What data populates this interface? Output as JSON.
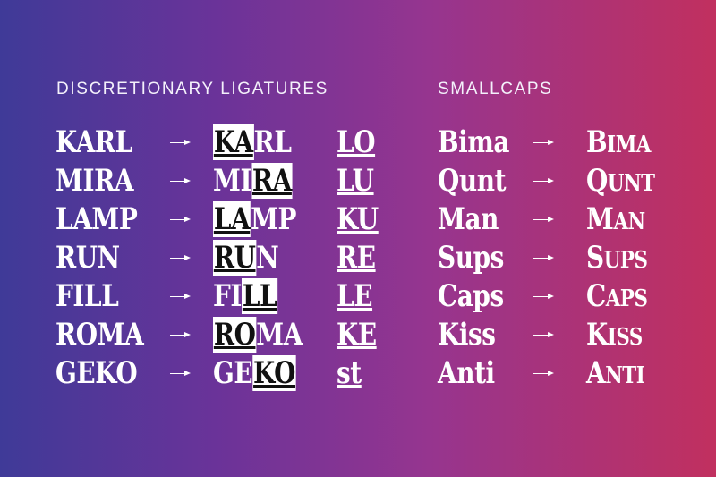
{
  "headings": {
    "ligatures": "DISCRETIONARY LIGATURES",
    "smallcaps": "SMALLCAPS"
  },
  "ligature_rows": [
    {
      "word": "KARL",
      "lig_pre": "",
      "lig_hl": "KA",
      "lig_post": "RL",
      "sample": "LO"
    },
    {
      "word": "MIRA",
      "lig_pre": "MI",
      "lig_hl": "RA",
      "lig_post": "",
      "sample": "LU"
    },
    {
      "word": "LAMP",
      "lig_pre": "",
      "lig_hl": "LA",
      "lig_post": "MP",
      "sample": "KU"
    },
    {
      "word": "RUN",
      "lig_pre": "",
      "lig_hl": "RU",
      "lig_post": "N",
      "sample": "RE"
    },
    {
      "word": "FILL",
      "lig_pre": "FI",
      "lig_hl": "LL",
      "lig_post": "",
      "sample": "LE"
    },
    {
      "word": "ROMA",
      "lig_pre": "",
      "lig_hl": "RO",
      "lig_post": "MA",
      "sample": "KE"
    },
    {
      "word": "GEKO",
      "lig_pre": "GE",
      "lig_hl": "KO",
      "lig_post": "",
      "sample": "st"
    }
  ],
  "smallcaps_rows": [
    {
      "source": "Bima",
      "first": "B",
      "rest": "IMA"
    },
    {
      "source": "Qunt",
      "first": "Q",
      "rest": "UNT"
    },
    {
      "source": "Man",
      "first": "M",
      "rest": "AN"
    },
    {
      "source": "Sups",
      "first": "S",
      "rest": "UPS"
    },
    {
      "source": "Caps",
      "first": "C",
      "rest": "APS"
    },
    {
      "source": "Kiss",
      "first": "K",
      "rest": "ISS"
    },
    {
      "source": "Anti",
      "first": "A",
      "rest": "NTI"
    }
  ],
  "icons": {
    "arrow": "right-arrow-icon"
  },
  "colors": {
    "text": "#ffffff",
    "highlight_text": "#111111",
    "gradient_start": "#3f3a98",
    "gradient_end": "#c1305f"
  }
}
